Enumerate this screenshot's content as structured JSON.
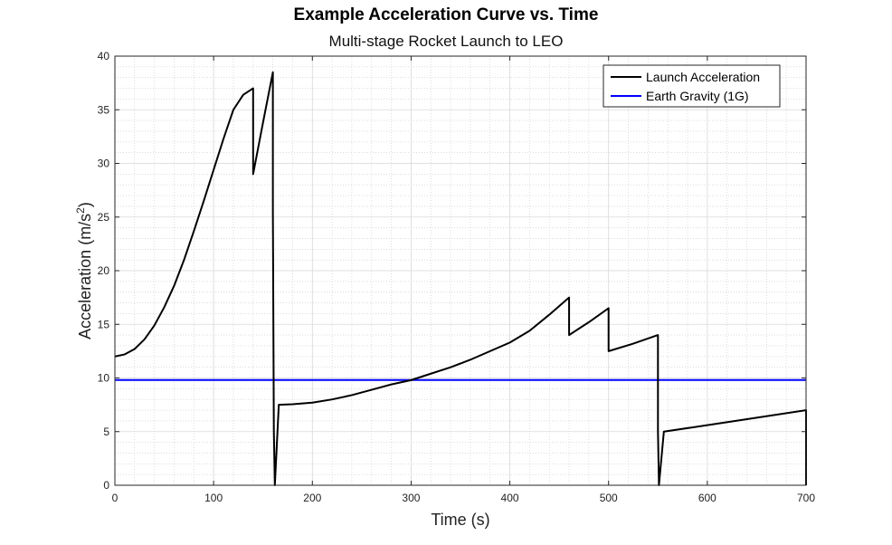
{
  "chart_data": {
    "type": "line",
    "title": "Example Acceleration Curve vs. Time",
    "subtitle": "Multi-stage Rocket Launch to LEO",
    "xlabel": "Time (s)",
    "ylabel_main": "Acceleration (m/s",
    "ylabel_sup": "2",
    "ylabel_end": ")",
    "xlim": [
      0,
      700
    ],
    "ylim": [
      0,
      40
    ],
    "xticks": [
      0,
      100,
      200,
      300,
      400,
      500,
      600,
      700
    ],
    "yticks": [
      0,
      5,
      10,
      15,
      20,
      25,
      30,
      35,
      40
    ],
    "grid": true,
    "minor_grid": true,
    "legend_position": "top-right",
    "series": [
      {
        "name": "Launch Acceleration",
        "color": "#000000",
        "x": [
          0,
          10,
          20,
          30,
          40,
          50,
          60,
          70,
          80,
          90,
          100,
          110,
          120,
          130,
          140,
          140.01,
          150,
          160,
          160.01,
          161,
          162,
          166,
          180,
          200,
          220,
          240,
          260,
          280,
          300,
          320,
          340,
          360,
          380,
          400,
          420,
          440,
          460,
          460.01,
          480,
          500,
          500.01,
          525,
          550,
          550.01,
          551,
          556,
          600,
          650,
          700,
          700.01
        ],
        "y": [
          12.0,
          12.2,
          12.7,
          13.6,
          14.9,
          16.6,
          18.6,
          21.0,
          23.7,
          26.5,
          29.4,
          32.3,
          35.0,
          36.4,
          37.0,
          29.0,
          33.8,
          38.5,
          25.5,
          5.0,
          0.0,
          7.5,
          7.55,
          7.7,
          8.0,
          8.4,
          8.9,
          9.4,
          9.8,
          10.4,
          11.0,
          11.7,
          12.5,
          13.3,
          14.4,
          15.9,
          17.5,
          14.0,
          15.2,
          16.5,
          12.5,
          13.2,
          14.0,
          5.0,
          0.0,
          5.0,
          5.6,
          6.3,
          7.0,
          0.0
        ]
      },
      {
        "name": "Earth Gravity (1G)",
        "color": "#0000ff",
        "x": [
          0,
          700
        ],
        "y": [
          9.81,
          9.81
        ]
      }
    ]
  }
}
